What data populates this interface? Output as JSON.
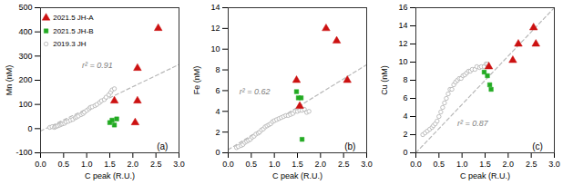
{
  "chart_data": [
    {
      "type": "scatter",
      "xlabel": "C peak (R.U.)",
      "ylabel": "Mn (nM)",
      "annotations": [
        "r² = 0.91",
        "(a)"
      ],
      "legend": "upper left",
      "xlim": [
        0,
        3
      ],
      "xticks": [
        {
          "value": 0,
          "label": "0.0"
        },
        0.5,
        {
          "value": 1,
          "label": "1.0"
        },
        1.5,
        {
          "value": 2,
          "label": "2.0"
        },
        2.5,
        {
          "value": 3,
          "label": "3.0"
        }
      ],
      "ylim": [
        -100,
        500
      ],
      "yticks": [
        -100,
        0,
        100,
        200,
        300,
        400,
        500
      ],
      "series": [
        {
          "name": "2019.3 JH",
          "color": "#b0b0b0",
          "marker": "open-circle",
          "x": [
            0.2,
            0.25,
            0.3,
            0.32,
            0.35,
            0.38,
            0.42,
            0.45,
            0.48,
            0.52,
            0.55,
            0.6,
            0.65,
            0.7,
            0.75,
            0.78,
            0.82,
            0.88,
            0.92,
            0.95,
            1.0,
            1.05,
            1.08,
            1.12,
            1.18,
            1.22,
            1.28,
            1.32,
            1.38,
            1.42,
            1.48,
            1.52,
            1.55,
            1.6
          ],
          "values": [
            5,
            8,
            5,
            8,
            10,
            12,
            15,
            18,
            20,
            22,
            28,
            30,
            35,
            38,
            45,
            48,
            52,
            58,
            62,
            68,
            75,
            82,
            88,
            90,
            95,
            100,
            108,
            115,
            120,
            130,
            140,
            150,
            160,
            165
          ]
        },
        {
          "name": "2021.5 JH-A",
          "color": "#cc1111",
          "marker": "triangle",
          "x": [
            2.1,
            2.55,
            2.1,
            1.6,
            2.05
          ],
          "values": [
            115,
            415,
            250,
            115,
            25
          ]
        },
        {
          "name": "2021.5 JH-B",
          "color": "#22aa22",
          "marker": "square",
          "x": [
            1.5,
            1.55,
            1.6,
            1.65
          ],
          "values": [
            25,
            35,
            15,
            40
          ]
        },
        {
          "type": "line",
          "color": "#b8b8b8",
          "line_style": "dashed",
          "x": [
            0.0,
            3.0
          ],
          "values": [
            -10,
            265
          ]
        }
      ]
    },
    {
      "type": "scatter",
      "xlabel": "C peak (R.U.)",
      "ylabel": "Fe (nM)",
      "annotations": [
        "r² = 0.62",
        "(b)"
      ],
      "xlim": [
        0,
        3
      ],
      "xticks": [
        {
          "value": 0,
          "label": "0.0"
        },
        0.5,
        {
          "value": 1,
          "label": "1.0"
        },
        1.5,
        {
          "value": 2,
          "label": "2.0"
        },
        2.5,
        {
          "value": 3,
          "label": "3.0"
        }
      ],
      "ylim": [
        0,
        14
      ],
      "yticks": [
        0,
        2,
        4,
        6,
        8,
        10,
        12,
        14
      ],
      "series": [
        {
          "name": "2019.3 JH",
          "color": "#b0b0b0",
          "marker": "open-circle",
          "x": [
            0.18,
            0.22,
            0.28,
            0.32,
            0.36,
            0.4,
            0.44,
            0.48,
            0.52,
            0.56,
            0.6,
            0.65,
            0.68,
            0.72,
            0.76,
            0.8,
            0.84,
            0.88,
            0.92,
            0.96,
            1.0,
            1.05,
            1.1,
            1.15,
            1.2,
            1.25,
            1.3,
            1.35,
            1.4,
            1.45,
            1.5,
            1.55,
            1.6,
            1.65,
            1.7,
            1.75
          ],
          "values": [
            0.5,
            0.6,
            0.7,
            0.8,
            1.0,
            1.1,
            1.2,
            1.3,
            1.5,
            1.6,
            1.8,
            1.9,
            2.0,
            2.2,
            2.3,
            2.5,
            2.6,
            2.7,
            2.8,
            3.0,
            3.1,
            3.2,
            3.3,
            3.4,
            3.5,
            3.6,
            3.6,
            3.7,
            3.8,
            4.0,
            4.0,
            4.1,
            4.1,
            4.2,
            3.9,
            4.0
          ]
        },
        {
          "name": "2021.5 JH-A",
          "color": "#cc1111",
          "marker": "triangle",
          "x": [
            1.48,
            2.12,
            2.35,
            2.58,
            1.55
          ],
          "values": [
            7.0,
            12.0,
            10.8,
            7.0,
            4.5
          ]
        },
        {
          "name": "2021.5 JH-B",
          "color": "#22aa22",
          "marker": "square",
          "x": [
            1.48,
            1.52,
            1.58,
            1.6
          ],
          "values": [
            5.9,
            5.3,
            5.3,
            1.3
          ]
        },
        {
          "type": "line",
          "color": "#b8b8b8",
          "line_style": "dashed",
          "x": [
            0.0,
            3.0
          ],
          "values": [
            0.3,
            8.5
          ]
        }
      ]
    },
    {
      "type": "scatter",
      "xlabel": "C peak (R.U.)",
      "ylabel": "Cu (nM)",
      "annotations": [
        "r² = 0.87",
        "(c)"
      ],
      "xlim": [
        0,
        3
      ],
      "xticks": [
        {
          "value": 0,
          "label": "0.0"
        },
        0.5,
        {
          "value": 1,
          "label": "1.0"
        },
        1.5,
        {
          "value": 2,
          "label": "2.0"
        },
        2.5,
        {
          "value": 3,
          "label": "3.0"
        }
      ],
      "ylim": [
        0,
        16
      ],
      "yticks": [
        0,
        2,
        4,
        6,
        8,
        10,
        12,
        14,
        16
      ],
      "series": [
        {
          "name": "2019.3 JH",
          "color": "#b0b0b0",
          "marker": "open-circle",
          "x": [
            0.15,
            0.2,
            0.25,
            0.3,
            0.35,
            0.38,
            0.42,
            0.46,
            0.5,
            0.54,
            0.58,
            0.62,
            0.66,
            0.7,
            0.74,
            0.78,
            0.82,
            0.86,
            0.9,
            0.94,
            0.98,
            1.02,
            1.06,
            1.1,
            1.14,
            1.18,
            1.22,
            1.28,
            1.32,
            1.38,
            1.42,
            1.48,
            1.52,
            1.55
          ],
          "values": [
            2.0,
            2.2,
            2.4,
            2.6,
            2.8,
            3.0,
            3.2,
            3.5,
            4.0,
            4.5,
            5.0,
            5.5,
            6.0,
            6.5,
            7.0,
            7.0,
            7.5,
            7.8,
            8.0,
            8.2,
            8.2,
            8.5,
            8.6,
            8.8,
            9.0,
            9.0,
            9.2,
            9.2,
            9.5,
            9.4,
            9.5,
            9.5,
            9.8,
            9.8
          ]
        },
        {
          "name": "2021.5 JH-A",
          "color": "#cc1111",
          "marker": "triangle",
          "x": [
            1.58,
            2.1,
            2.22,
            2.55,
            2.6
          ],
          "values": [
            9.5,
            10.2,
            12.0,
            13.8,
            12.0
          ]
        },
        {
          "name": "2021.5 JH-B",
          "color": "#22aa22",
          "marker": "square",
          "x": [
            1.48,
            1.55,
            1.6,
            1.63
          ],
          "values": [
            8.9,
            8.5,
            7.5,
            7.0
          ]
        },
        {
          "type": "line",
          "color": "#b8b8b8",
          "line_style": "dashed",
          "x": [
            0.0,
            3.0
          ],
          "values": [
            0.0,
            16.0
          ]
        }
      ]
    }
  ]
}
